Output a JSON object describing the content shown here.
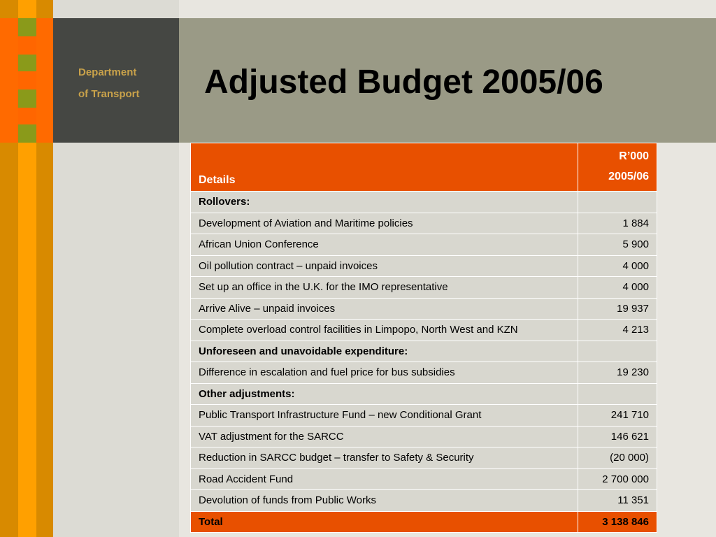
{
  "sidebar": {
    "dept_line1": "Department",
    "dept_line2": "of Transport"
  },
  "header": {
    "title": "Adjusted Budget 2005/06"
  },
  "table": {
    "col_details": "Details",
    "col_amount_line1": "R’000",
    "col_amount_line2": "2005/06",
    "rows": [
      {
        "label": "Rollovers:",
        "value": "",
        "section": true
      },
      {
        "label": "Development of Aviation and Maritime policies",
        "value": "1 884"
      },
      {
        "label": "African Union Conference",
        "value": "5 900"
      },
      {
        "label": "Oil pollution contract – unpaid invoices",
        "value": "4 000"
      },
      {
        "label": "Set up an office in the U.K. for the IMO representative",
        "value": "4 000"
      },
      {
        "label": "Arrive Alive – unpaid invoices",
        "value": "19 937"
      },
      {
        "label": "Complete overload control facilities in Limpopo, North West and KZN",
        "value": "4 213"
      },
      {
        "label": "Unforeseen and unavoidable expenditure:",
        "value": "",
        "section": true
      },
      {
        "label": "Difference in escalation and fuel price for bus subsidies",
        "value": "19 230"
      },
      {
        "label": "Other adjustments:",
        "value": "",
        "section": true
      },
      {
        "label": "Public Transport Infrastructure Fund – new Conditional Grant",
        "value": "241 710"
      },
      {
        "label": "VAT adjustment for the SARCC",
        "value": "146 621"
      },
      {
        "label": "Reduction in SARCC budget – transfer to Safety & Security",
        "value": "(20 000)"
      },
      {
        "label": "Road Accident Fund",
        "value": "2 700 000"
      },
      {
        "label": "Devolution of funds from Public Works",
        "value": "11 351"
      }
    ],
    "total_label": "Total",
    "total_value": "3 138 846"
  }
}
